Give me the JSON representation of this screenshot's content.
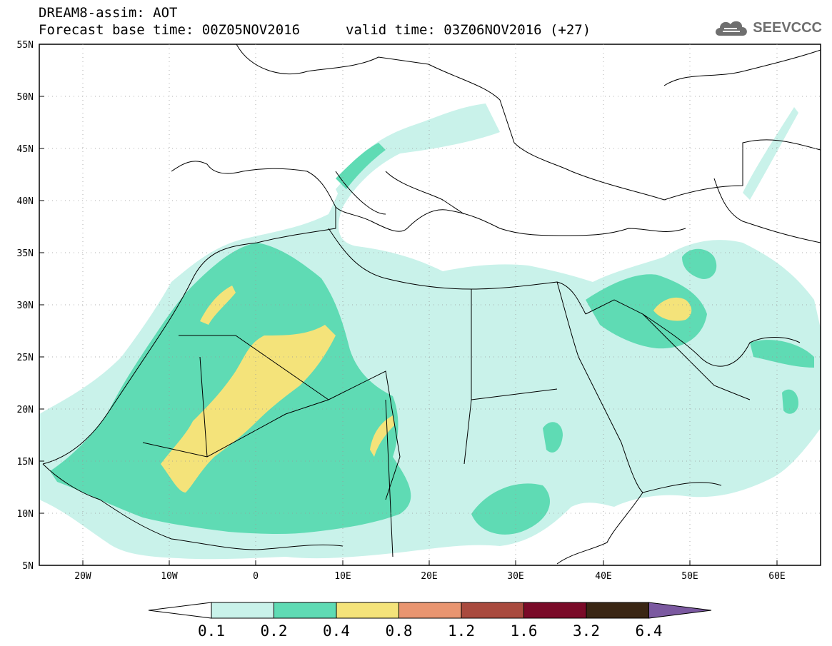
{
  "header": {
    "title_line1": "DREAM8-assim: AOT",
    "title_line2_left": "Forecast base time: 00Z05NOV2016",
    "title_line2_right": "valid time: 03Z06NOV2016 (+27)"
  },
  "logo": {
    "text": "SEEVCCC",
    "icon": "cloud-icon"
  },
  "map": {
    "lat_labels": [
      "55N",
      "50N",
      "45N",
      "40N",
      "35N",
      "30N",
      "25N",
      "20N",
      "15N",
      "10N",
      "5N"
    ],
    "lon_labels": [
      "20W",
      "10W",
      "0",
      "10E",
      "20E",
      "30E",
      "40E",
      "50E",
      "60E"
    ]
  },
  "colorbar": {
    "labels": [
      "0.1",
      "0.2",
      "0.4",
      "0.8",
      "1.2",
      "1.6",
      "3.2",
      "6.4"
    ],
    "colors": [
      "#ffffff",
      "#c9f2ea",
      "#5fdbb4",
      "#f4e37a",
      "#e99570",
      "#a94a3e",
      "#7a0a28",
      "#3a2614",
      "#7b59a0"
    ]
  }
}
